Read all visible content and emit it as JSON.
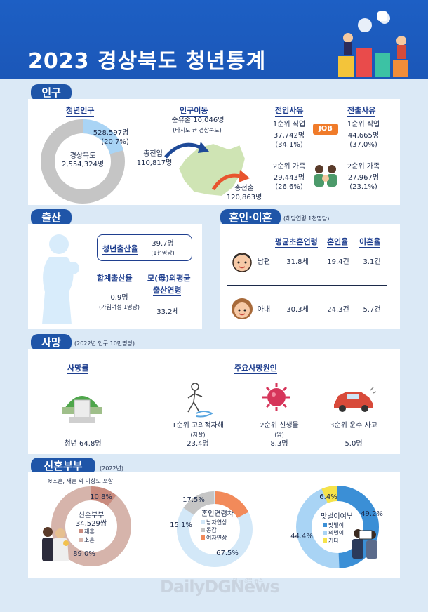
{
  "header": {
    "title": "2023 경상북도 청년통계"
  },
  "population": {
    "tab": "인구",
    "youth": {
      "label": "청년인구",
      "total_label": "경상북도",
      "total_value": "2,554,324명",
      "youth_value": "528,597명",
      "youth_pct": "(20.7%)",
      "youth_fraction": 0.207
    },
    "migration": {
      "label": "인구이동",
      "net_label": "순유출 10,046명",
      "net_note": "(타시도 ⇄ 경상북도)",
      "in_label": "총전입",
      "in_value": "110,817명",
      "out_label": "총전출",
      "out_value": "120,863명"
    },
    "in_reason": {
      "label": "전입사유",
      "r1_label": "1순위 직업",
      "r1_value": "37,742명",
      "r1_pct": "(34.1%)",
      "r2_label": "2순위 가족",
      "r2_value": "29,443명",
      "r2_pct": "(26.6%)"
    },
    "out_reason": {
      "label": "전출사유",
      "r1_label": "1순위 직업",
      "r1_value": "44,665명",
      "r1_pct": "(37.0%)",
      "r2_label": "2순위 가족",
      "r2_value": "27,967명",
      "r2_pct": "(23.1%)"
    },
    "job_badge": "JOB"
  },
  "birth": {
    "tab": "출산",
    "youth_rate_label": "청년출산율",
    "youth_rate_value": "39.7명",
    "youth_rate_note": "(1천명당)",
    "total_rate_label": "합계출산율",
    "total_rate_value": "0.9명",
    "total_rate_note": "(가임여성 1명당)",
    "mother_age_label1": "모(母)의평균",
    "mother_age_label2": "출산연령",
    "mother_age_value": "33.2세"
  },
  "marriage": {
    "tab": "혼인·이혼",
    "note": "(해당연령 1천명당)",
    "col1": "평균초혼연령",
    "col2": "혼인율",
    "col3": "이혼율",
    "husband": {
      "label": "남편",
      "age": "31.8세",
      "marriage": "19.4건",
      "divorce": "3.1건"
    },
    "wife": {
      "label": "아내",
      "age": "30.3세",
      "marriage": "24.3건",
      "divorce": "5.7건"
    }
  },
  "death": {
    "tab": "사망",
    "note": "(2022년 인구 10만명당)",
    "rate_label": "사망률",
    "rate_value": "청년 64.8명",
    "cause_label": "주요사망원인",
    "c1_label": "1순위 고의적자해",
    "c1_note": "(자살)",
    "c1_value": "23.4명",
    "c2_label": "2순위 신생물",
    "c2_note": "(암)",
    "c2_value": "8.3명",
    "c3_label": "3순위 운수 사고",
    "c3_value": "5.0명"
  },
  "newlywed": {
    "tab": "신혼부부",
    "note": "(2022년)",
    "footnote": "※초혼, 재혼 외 미상도 포함",
    "couples": {
      "title": "신혼부부",
      "value": "34,529쌍",
      "legend1": "재혼",
      "legend2": "초혼",
      "pct_remarriage": "10.8%",
      "pct_first": "89.0%",
      "frac_remarriage": 0.108,
      "frac_first": 0.89
    },
    "age_gap": {
      "title": "혼인연령차",
      "legend1": "남자연상",
      "legend2": "동갑",
      "legend3": "여자연상",
      "pct_male": "67.5%",
      "pct_same": "15.1%",
      "pct_female": "17.5%",
      "frac_male": 0.675,
      "frac_same": 0.151,
      "frac_female": 0.175
    },
    "dual_income": {
      "title": "맞벌이여부",
      "legend1": "맞벌이",
      "legend2": "외벌이",
      "legend3": "기타",
      "pct_dual": "49.2%",
      "pct_single": "44.4%",
      "pct_other": "6.4%",
      "frac_dual": 0.492,
      "frac_single": 0.444,
      "frac_other": 0.064
    }
  },
  "watermark": {
    "brand": "DailyDGNews",
    "sub": "대구·경북 뉴스"
  },
  "colors": {
    "navy": "#1f55a8",
    "gray": "#c5c5c5",
    "lightblue": "#a9d4f5",
    "rose": "#d6b4ab",
    "orange": "#f28a5a",
    "blue": "#3b8fd6",
    "yellow": "#f6e34a",
    "green": "#cfe4b4"
  }
}
